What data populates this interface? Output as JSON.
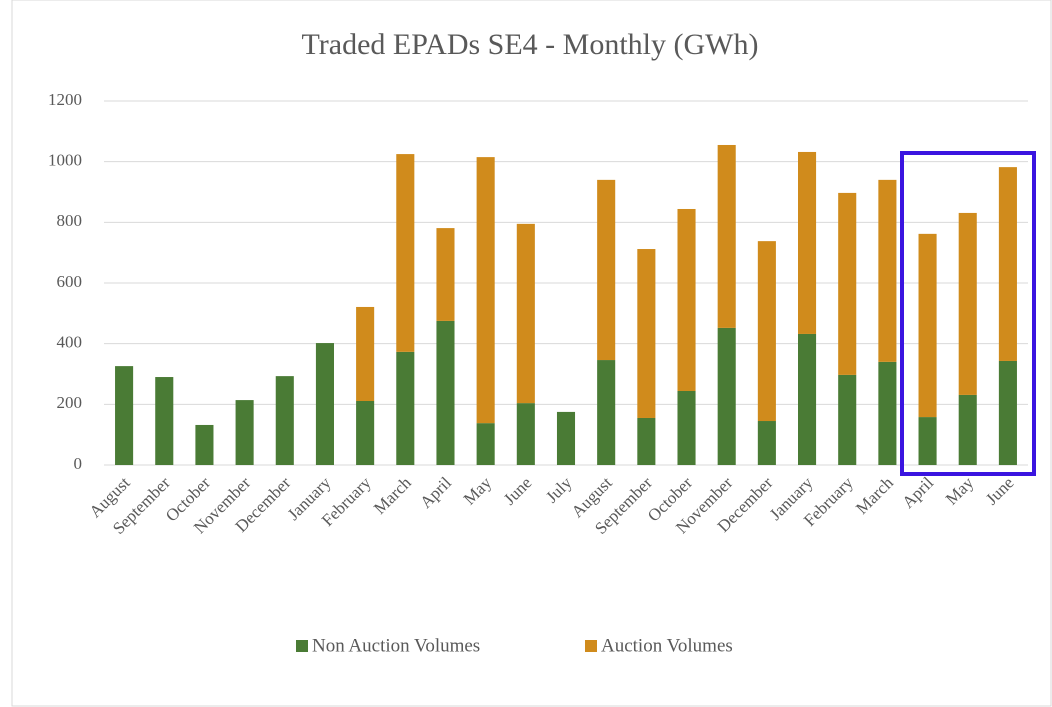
{
  "chart_data": {
    "type": "stacked_bar",
    "title": "Traded EPADs SE4 - Monthly (GWh)",
    "categories": [
      "August",
      "September",
      "October",
      "November",
      "December",
      "January",
      "February",
      "March",
      "April",
      "May",
      "June",
      "July",
      "August",
      "September",
      "October",
      "November",
      "December",
      "January",
      "February",
      "March",
      "April",
      "May",
      "June"
    ],
    "series": [
      {
        "name": "Non Auction Volumes",
        "color": "#4a7b35",
        "values": [
          326,
          290,
          132,
          214,
          293,
          402,
          211,
          373,
          475,
          138,
          204,
          175,
          346,
          155,
          244,
          452,
          145,
          432,
          297,
          340,
          158,
          231,
          343
        ]
      },
      {
        "name": "Auction Volumes",
        "color": "#d08b1c",
        "values": [
          0,
          0,
          0,
          0,
          0,
          0,
          310,
          652,
          306,
          877,
          591,
          0,
          594,
          557,
          600,
          603,
          593,
          600,
          600,
          600,
          604,
          600,
          639
        ]
      }
    ],
    "ylim": [
      0,
      1200
    ],
    "yticks": [
      0,
      200,
      400,
      600,
      800,
      1000,
      1200
    ],
    "grid": true,
    "legend": "bottom"
  }
}
